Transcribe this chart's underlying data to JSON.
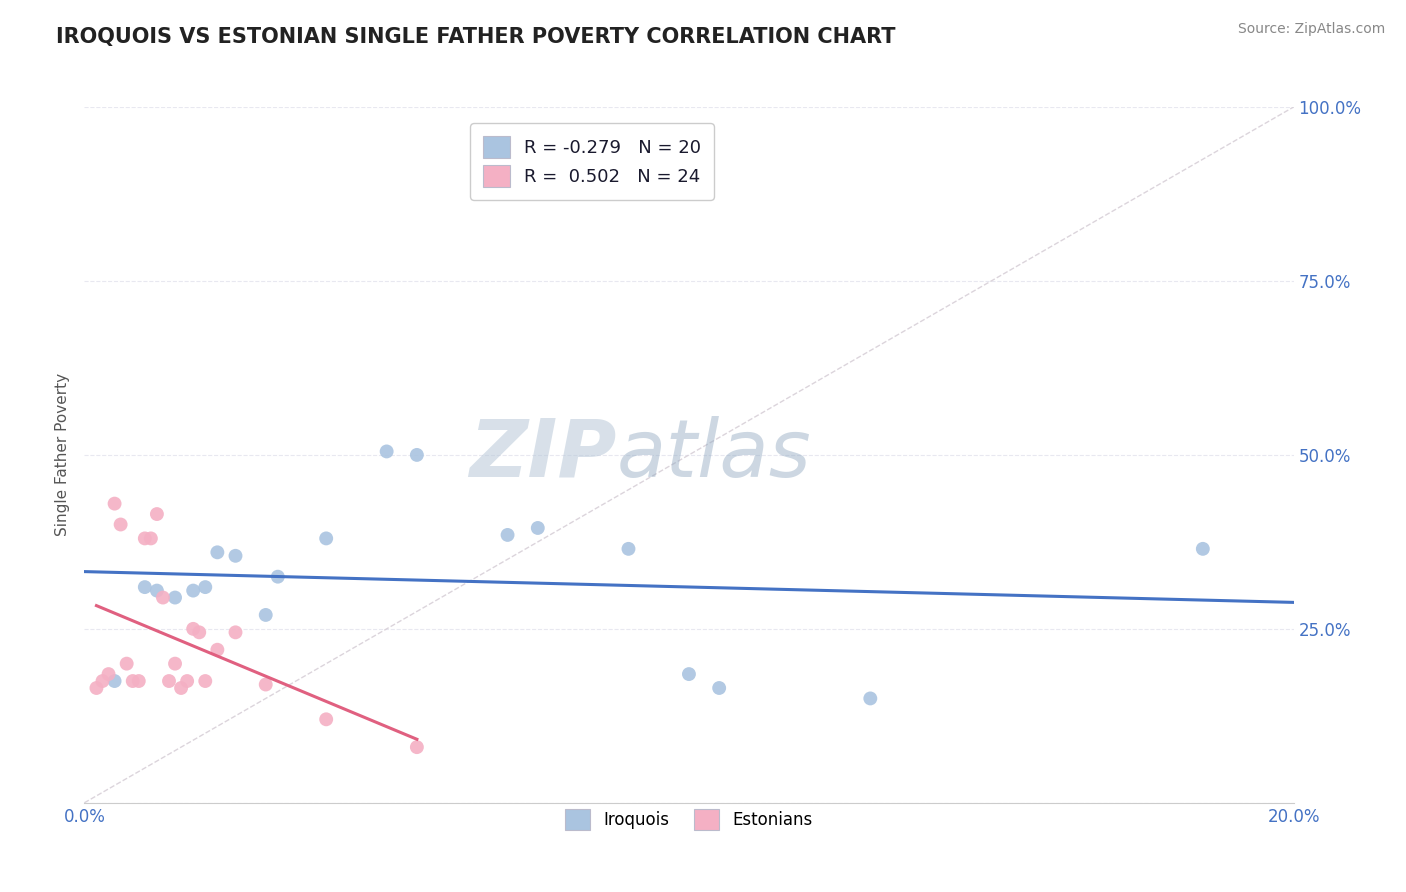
{
  "title": "IROQUOIS VS ESTONIAN SINGLE FATHER POVERTY CORRELATION CHART",
  "source_text": "Source: ZipAtlas.com",
  "ylabel": "Single Father Poverty",
  "xlim": [
    0.0,
    0.2
  ],
  "ylim": [
    0.0,
    1.0
  ],
  "xticks": [
    0.0,
    0.05,
    0.1,
    0.15,
    0.2
  ],
  "xticklabels": [
    "0.0%",
    "",
    "",
    "",
    "20.0%"
  ],
  "yticks": [
    0.0,
    0.25,
    0.5,
    0.75,
    1.0
  ],
  "yticklabels": [
    "",
    "25.0%",
    "50.0%",
    "75.0%",
    "100.0%"
  ],
  "iroquois_color": "#aac4e0",
  "estonian_color": "#f4b0c4",
  "iroquois_line_color": "#4472c4",
  "estonian_line_color": "#e06080",
  "diagonal_color": "#d8d0d8",
  "legend_R_iroquois": "-0.279",
  "legend_N_iroquois": "20",
  "legend_R_estonian": "0.502",
  "legend_N_estonian": "24",
  "watermark_zip": "ZIP",
  "watermark_atlas": "atlas",
  "iroquois_x": [
    0.005,
    0.01,
    0.012,
    0.015,
    0.018,
    0.02,
    0.022,
    0.025,
    0.03,
    0.032,
    0.04,
    0.05,
    0.055,
    0.07,
    0.075,
    0.09,
    0.1,
    0.105,
    0.13,
    0.185
  ],
  "iroquois_y": [
    0.175,
    0.31,
    0.305,
    0.295,
    0.305,
    0.31,
    0.36,
    0.355,
    0.27,
    0.325,
    0.38,
    0.505,
    0.5,
    0.385,
    0.395,
    0.365,
    0.185,
    0.165,
    0.15,
    0.365
  ],
  "estonian_x": [
    0.002,
    0.003,
    0.004,
    0.005,
    0.006,
    0.007,
    0.008,
    0.009,
    0.01,
    0.011,
    0.012,
    0.013,
    0.014,
    0.015,
    0.016,
    0.017,
    0.018,
    0.019,
    0.02,
    0.022,
    0.025,
    0.03,
    0.04,
    0.055
  ],
  "estonian_y": [
    0.165,
    0.175,
    0.185,
    0.43,
    0.4,
    0.2,
    0.175,
    0.175,
    0.38,
    0.38,
    0.415,
    0.295,
    0.175,
    0.2,
    0.165,
    0.175,
    0.25,
    0.245,
    0.175,
    0.22,
    0.245,
    0.17,
    0.12,
    0.08
  ],
  "background_color": "#ffffff",
  "grid_color": "#e8e8f0",
  "title_color": "#222222",
  "axis_label_color": "#555555",
  "tick_color": "#4472c4"
}
